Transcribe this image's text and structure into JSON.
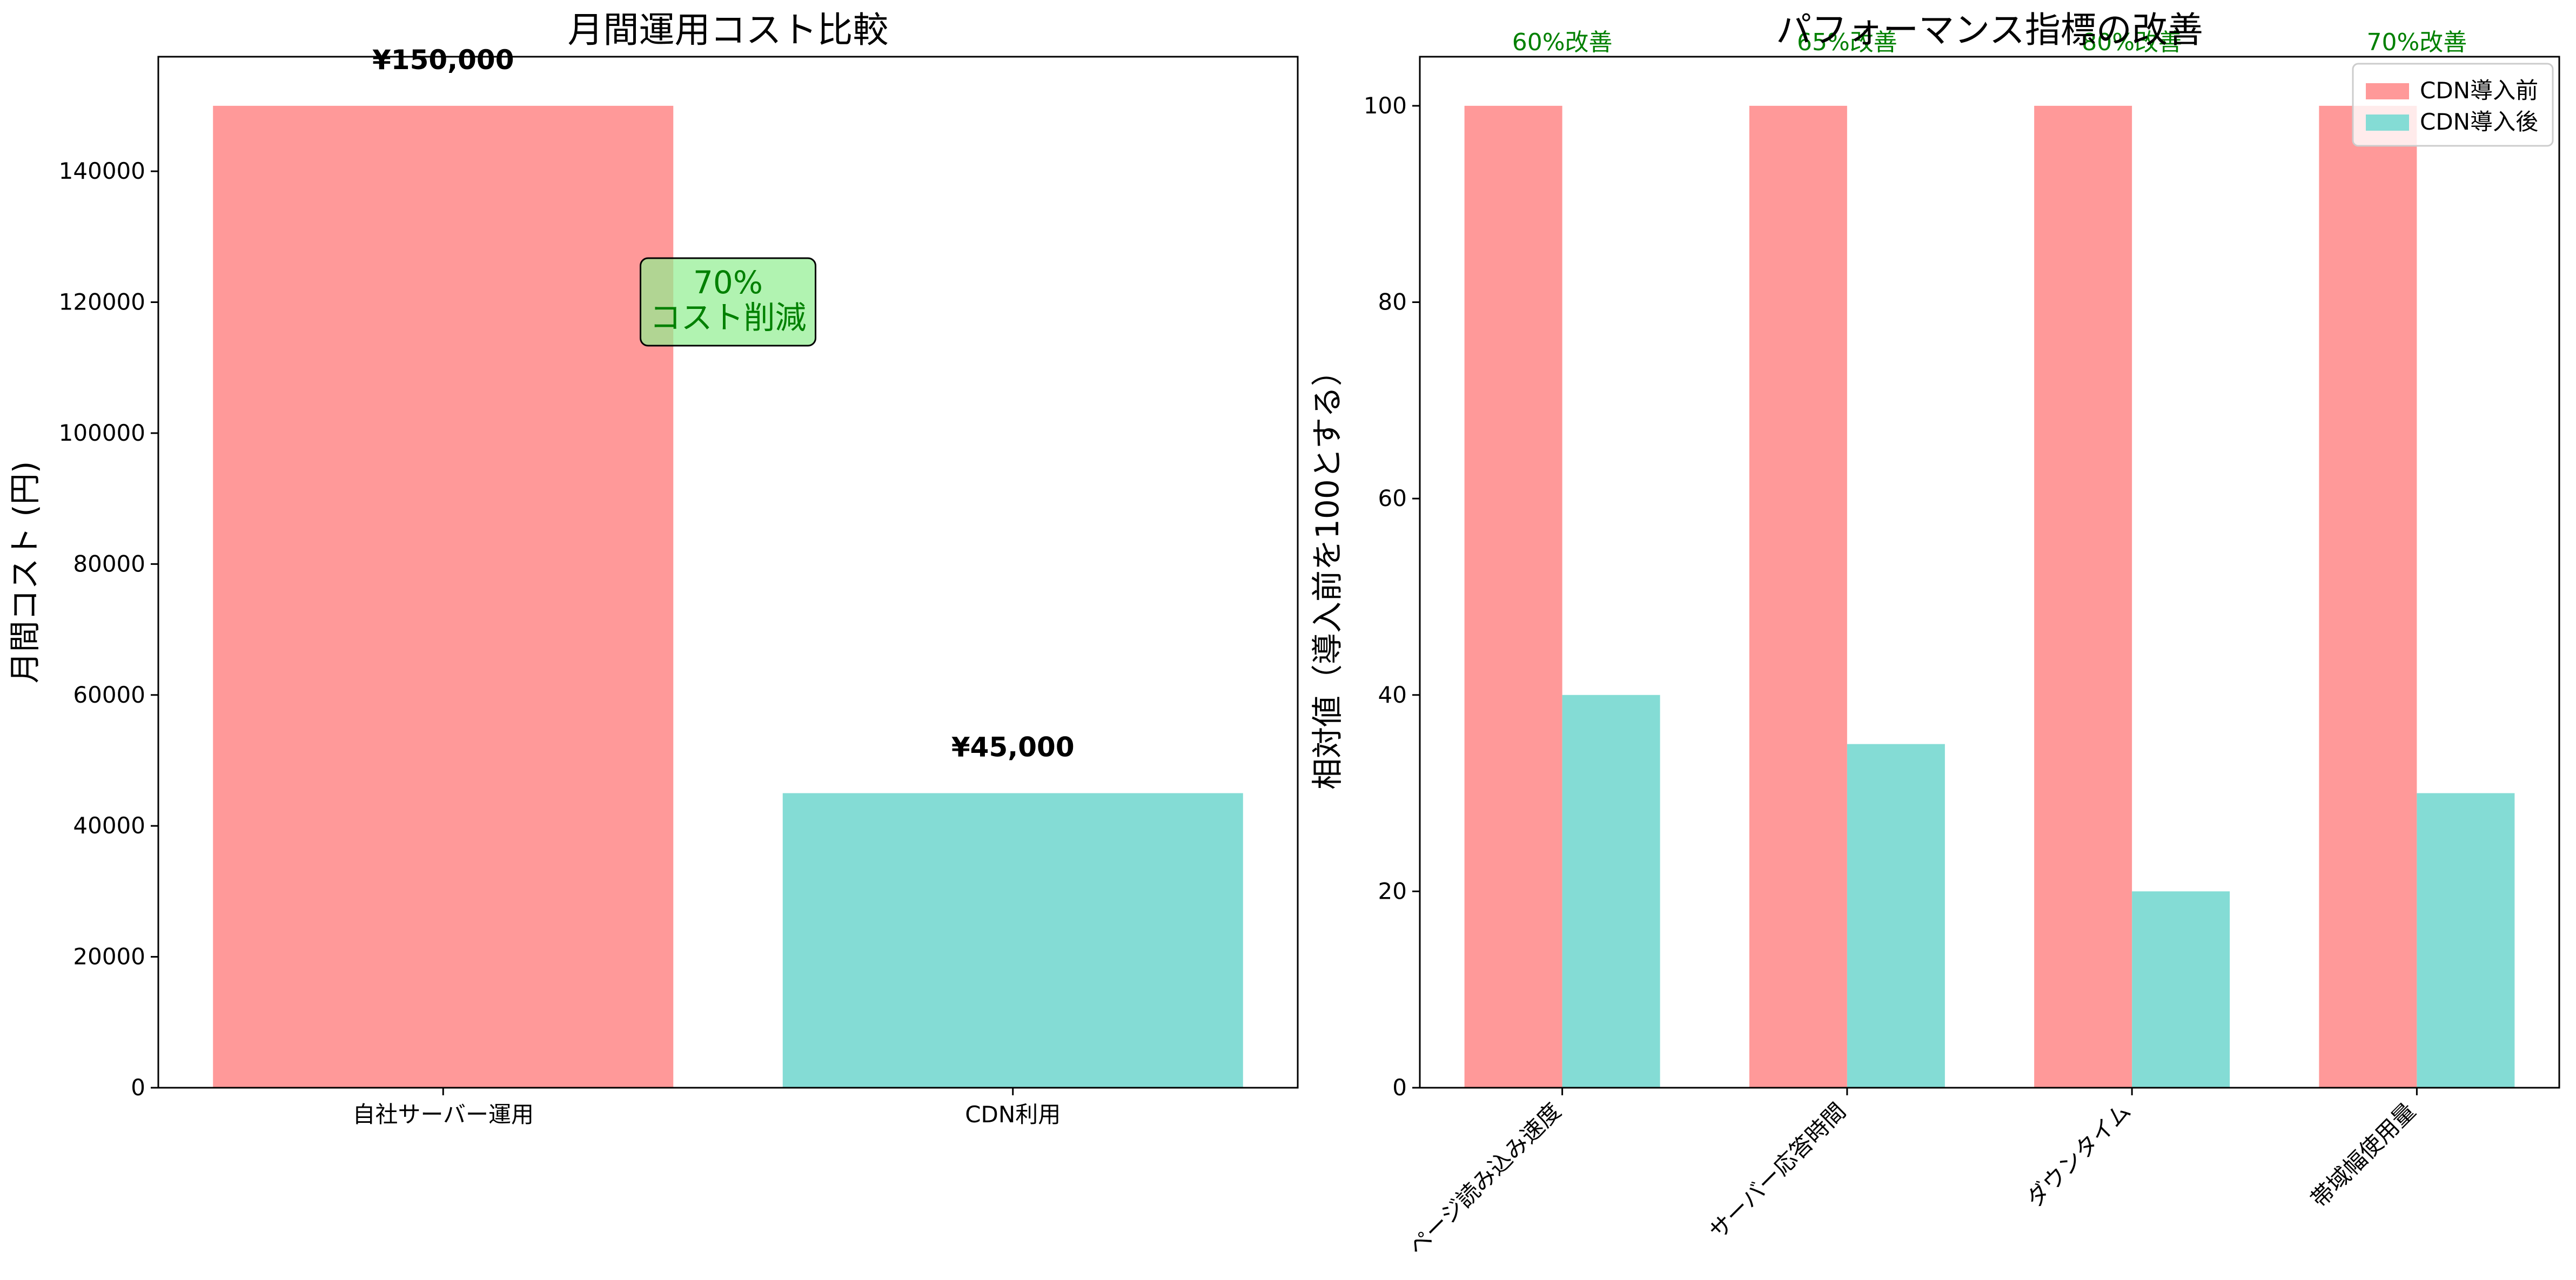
{
  "colors": {
    "before": "#FF9999",
    "after": "#84DCD5",
    "callout_fill": "#90EE90",
    "callout_text": "#008000",
    "improvement": "#008000"
  },
  "chart_data": [
    {
      "type": "bar",
      "title": "月間運用コスト比較",
      "ylabel": "月間コスト (円)",
      "xlabel": "",
      "categories": [
        "自社サーバー運用",
        "CDN利用"
      ],
      "values": [
        150000,
        45000
      ],
      "value_labels": [
        "¥150,000",
        "¥45,000"
      ],
      "yticks": [
        0,
        20000,
        40000,
        60000,
        80000,
        100000,
        120000,
        140000
      ],
      "ylim": [
        0,
        157500
      ],
      "annotation": {
        "line1": "70%",
        "line2": "コスト削減"
      },
      "grid": false
    },
    {
      "type": "bar",
      "title": "パフォーマンス指標の改善",
      "ylabel": "相対値（導入前を100とする）",
      "xlabel": "",
      "categories": [
        "ページ読み込み速度",
        "サーバー応答時間",
        "ダウンタイム",
        "帯域幅使用量"
      ],
      "series": [
        {
          "name": "CDN導入前",
          "values": [
            100,
            100,
            100,
            100
          ]
        },
        {
          "name": "CDN導入後",
          "values": [
            40,
            35,
            20,
            30
          ]
        }
      ],
      "improvement_labels": [
        "60%改善",
        "65%改善",
        "80%改善",
        "70%改善"
      ],
      "yticks": [
        0,
        20,
        40,
        60,
        80,
        100
      ],
      "ylim": [
        0,
        105
      ],
      "legend": "top-right",
      "grid": false
    }
  ]
}
